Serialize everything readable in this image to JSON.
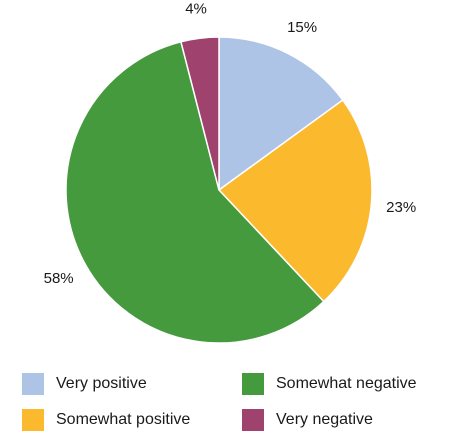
{
  "chart_data": {
    "type": "pie",
    "title": "",
    "slices": [
      {
        "label": "Very positive",
        "value": 15,
        "value_label": "15%",
        "color": "#aec4e6"
      },
      {
        "label": "Somewhat positive",
        "value": 23,
        "value_label": "23%",
        "color": "#fbb92e"
      },
      {
        "label": "Somewhat negative",
        "value": 58,
        "value_label": "58%",
        "color": "#449a3c"
      },
      {
        "label": "Very negative",
        "value": 4,
        "value_label": "4%",
        "color": "#a0426e"
      }
    ],
    "start": "12 o'clock",
    "direction": "clockwise",
    "legend_position": "bottom",
    "legend_columns": 2,
    "legend": [
      "Very positive",
      "Somewhat negative",
      "Somewhat positive",
      "Very negative"
    ]
  }
}
